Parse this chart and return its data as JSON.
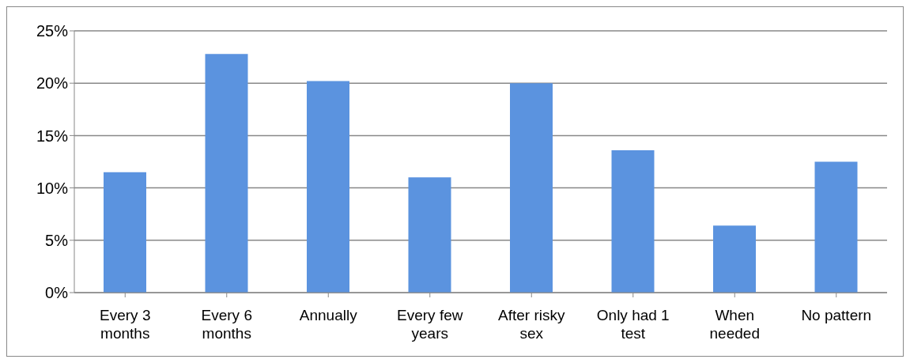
{
  "chart_data": {
    "type": "bar",
    "categories": [
      "Every 3 months",
      "Every 6 months",
      "Annually",
      "Every few years",
      "After risky sex",
      "Only had 1 test",
      "When needed",
      "No pattern"
    ],
    "values": [
      11.5,
      22.8,
      20.2,
      11.0,
      20.0,
      13.6,
      6.4,
      12.5
    ],
    "color": "#5b93df",
    "ylim": [
      0,
      25
    ],
    "yticks": [
      {
        "value": 0,
        "label": "0%"
      },
      {
        "value": 5,
        "label": "5%"
      },
      {
        "value": 10,
        "label": "10%"
      },
      {
        "value": 15,
        "label": "15%"
      },
      {
        "value": 20,
        "label": "20%"
      },
      {
        "value": 25,
        "label": "25%"
      }
    ],
    "grid": "y",
    "legend": false
  }
}
